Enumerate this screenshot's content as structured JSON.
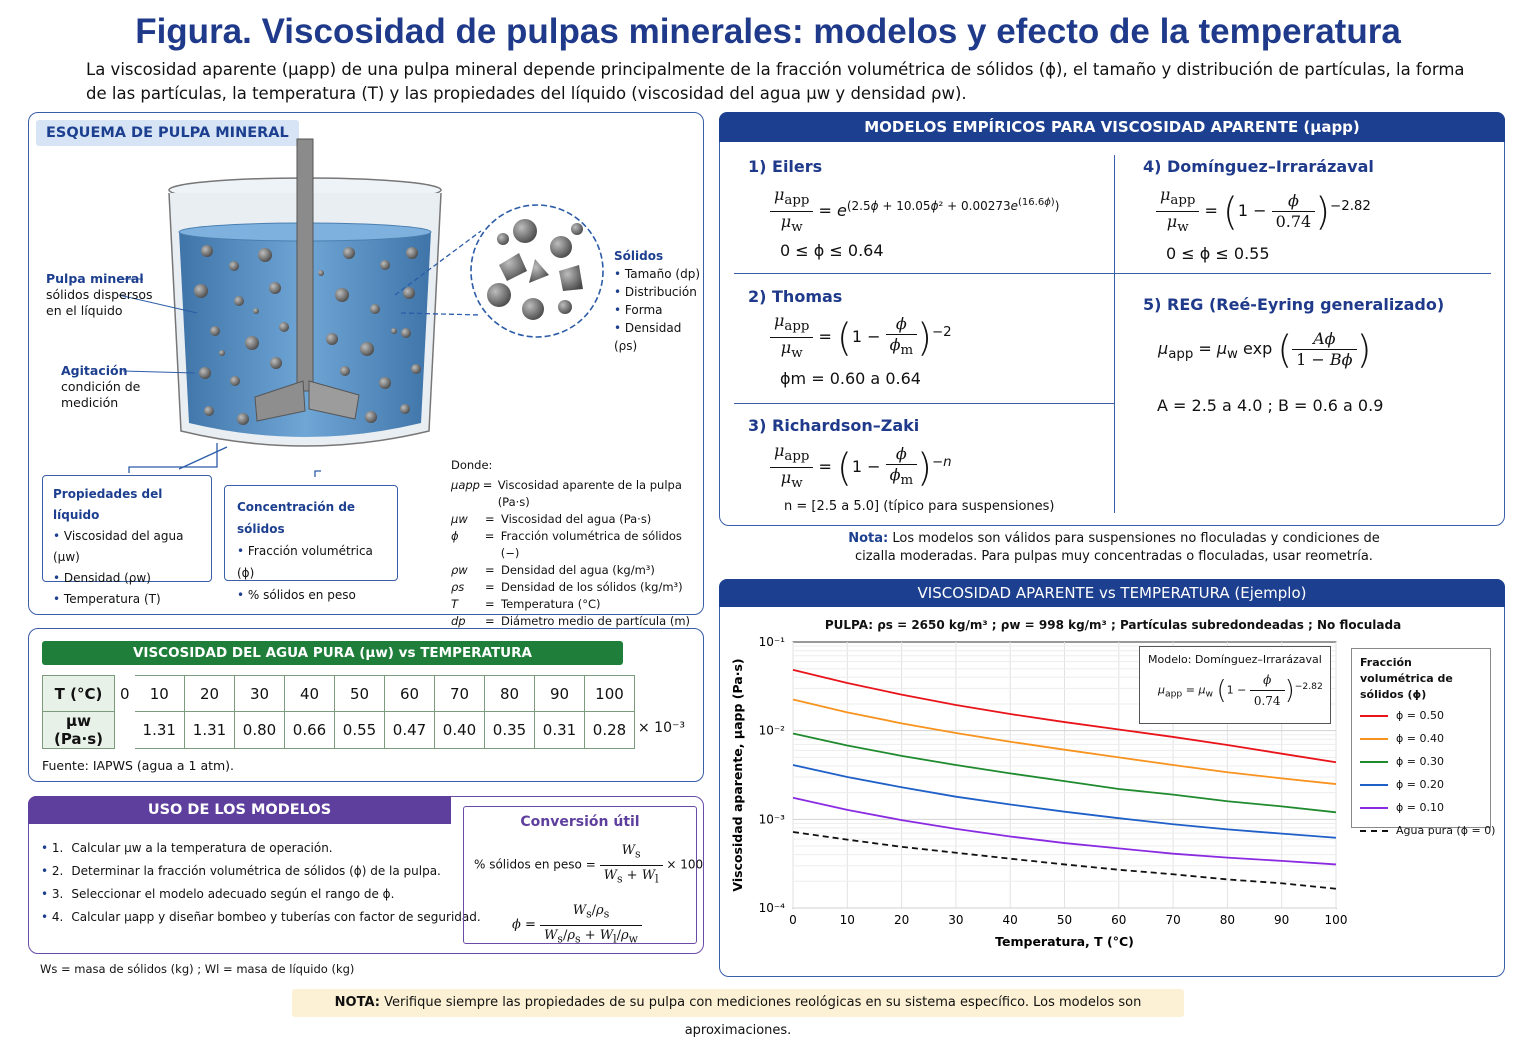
{
  "header": {
    "title": "Figura.  Viscosidad de pulpas minerales: modelos y efecto de la temperatura",
    "intro": "La viscosidad aparente (μapp) de una pulpa mineral depende principalmente de la fracción volumétrica de sólidos (ϕ), el tamaño y distribución de partículas, la forma de las partículas, la temperatura (T) y las propiedades del líquido (viscosidad del agua μw y densidad ρw)."
  },
  "schematic": {
    "title": "ESQUEMA DE PULPA MINERAL",
    "pulp_label": "Pulpa mineral",
    "pulp_desc": "sólidos dispersos en el líquido",
    "agit_label": "Agitación",
    "agit_desc": "condición de medición",
    "solids_title": "Sólidos",
    "solids_items": [
      "Tamaño (dp)",
      "Distribución",
      "Forma",
      "Densidad (ρs)"
    ],
    "liquid_title": "Propiedades del líquido",
    "liquid_items": [
      "Viscosidad del agua (μw)",
      "Densidad (ρw)",
      "Temperatura (T)"
    ],
    "conc_title": "Concentración de sólidos",
    "conc_items": [
      "Fracción volumétrica (ϕ)",
      "% sólidos en peso"
    ],
    "where_title": "Donde:",
    "where": [
      {
        "sym": "μapp",
        "desc": "Viscosidad aparente de la pulpa (Pa·s)"
      },
      {
        "sym": "μw",
        "desc": "Viscosidad del agua (Pa·s)"
      },
      {
        "sym": "ϕ",
        "desc": "Fracción volumétrica de sólidos (−)"
      },
      {
        "sym": "ρw",
        "desc": "Densidad del agua (kg/m³)"
      },
      {
        "sym": "ρs",
        "desc": "Densidad de los sólidos (kg/m³)"
      },
      {
        "sym": "T",
        "desc": "Temperatura (°C)"
      },
      {
        "sym": "dp",
        "desc": "Diámetro medio de partícula (m)"
      }
    ]
  },
  "models": {
    "title": "MODELOS EMPÍRICOS PARA VISCOSIDAD APARENTE (μapp)",
    "eilers": {
      "name": "1) Eilers",
      "range": "0 ≤ ϕ ≤ 0.64"
    },
    "thomas": {
      "name": "2) Thomas",
      "range": "ϕm = 0.60 a 0.64"
    },
    "rz": {
      "name": "3) Richardson–Zaki",
      "range": "n = [2.5 a 5.0] (típico para suspensiones)"
    },
    "dom": {
      "name": "4) Domínguez–Irrarázaval",
      "range": "0 ≤ ϕ ≤ 0.55"
    },
    "reg": {
      "name": "5) REG (Reé-Eyring generalizado)",
      "range": "A = 2.5 a 4.0 ;   B = 0.6 a 0.9"
    },
    "note_bold": "Nota:",
    "note": "Los modelos son válidos para suspensiones no floculadas y condiciones de cizalla moderadas. Para pulpas muy concentradas o floculadas, usar reometría."
  },
  "water": {
    "title": "VISCOSIDAD DEL AGUA PURA (μw) vs TEMPERATURA",
    "row1_label": "T (°C)",
    "row2_label": "μw (Pa·s)",
    "temps": [
      "0",
      "10",
      "20",
      "30",
      "40",
      "50",
      "60",
      "70",
      "80",
      "90",
      "100"
    ],
    "visc": [
      "",
      "1.31",
      "1.31",
      "0.80",
      "0.66",
      "0.55",
      "0.47",
      "0.40",
      "0.35",
      "0.31",
      "0.28"
    ],
    "multiplier": "× 10⁻³",
    "source": "Fuente: IAPWS (agua a 1 atm)."
  },
  "usage": {
    "title": "USO DE LOS MODELOS",
    "steps": [
      "Calcular μw a la temperatura de operación.",
      "Determinar la fracción volumétrica de sólidos (ϕ) de la pulpa.",
      "Seleccionar el modelo adecuado según el rango de ϕ.",
      "Calcular μapp y diseñar bombeo y tuberías con factor de seguridad."
    ],
    "footnote": "Ws = masa de sólidos (kg) ;   Wl = masa de líquido (kg)",
    "conv_title": "Conversión útil",
    "conv1_label": "% sólidos en peso =",
    "conv1_tail": "× 100"
  },
  "chart_panel": {
    "title": "VISCOSIDAD APARENTE vs TEMPERATURA (Ejemplo)",
    "subtitle": "PULPA: ρs = 2650 kg/m³ ; ρw = 998 kg/m³ ; Partículas subredondeadas ; No floculada",
    "model_box_title": "Modelo: Domínguez–Irrarázaval",
    "legend_title": "Fracción volumétrica de sólidos (ϕ)"
  },
  "chart_data": {
    "type": "line",
    "xlabel": "Temperatura, T (°C)",
    "ylabel": "Viscosidad aparente, μapp (Pa·s)",
    "xlim": [
      0,
      100
    ],
    "ylim": [
      0.0001,
      0.1
    ],
    "yscale": "log",
    "x_ticks": [
      0,
      10,
      20,
      30,
      40,
      50,
      60,
      70,
      80,
      90,
      100
    ],
    "y_tick_labels": [
      "10⁻¹",
      "10⁻²",
      "10⁻³",
      "10⁻⁴"
    ],
    "grid": true,
    "legend_placement": "right",
    "x": [
      0,
      10,
      20,
      30,
      40,
      50,
      60,
      70,
      80,
      90,
      100
    ],
    "series": [
      {
        "name": "ϕ = 0.50",
        "color": "#e8141a",
        "dash": false,
        "values": [
          0.0485,
          0.0345,
          0.0255,
          0.0195,
          0.0154,
          0.0125,
          0.0103,
          0.0085,
          0.0069,
          0.0055,
          0.0044
        ]
      },
      {
        "name": "ϕ = 0.40",
        "color": "#f7931e",
        "dash": false,
        "values": [
          0.0225,
          0.0161,
          0.0121,
          0.0094,
          0.0075,
          0.0061,
          0.005,
          0.0041,
          0.0034,
          0.0029,
          0.0025
        ]
      },
      {
        "name": "ϕ = 0.30",
        "color": "#1f8a2e",
        "dash": false,
        "values": [
          0.0093,
          0.0068,
          0.0052,
          0.0041,
          0.0033,
          0.0027,
          0.0022,
          0.0019,
          0.0016,
          0.0014,
          0.0012
        ]
      },
      {
        "name": "ϕ = 0.20",
        "color": "#1f5fc8",
        "dash": false,
        "values": [
          0.0041,
          0.003,
          0.0023,
          0.0018,
          0.00147,
          0.00122,
          0.00103,
          0.00088,
          0.00077,
          0.00069,
          0.00062
        ]
      },
      {
        "name": "ϕ = 0.10",
        "color": "#8a2be2",
        "dash": false,
        "values": [
          0.00175,
          0.00128,
          0.00098,
          0.00078,
          0.00064,
          0.00054,
          0.00047,
          0.00041,
          0.00037,
          0.00034,
          0.00031
        ]
      },
      {
        "name": "Agua pura (ϕ = 0)",
        "color": "#111111",
        "dash": true,
        "values": [
          0.00072,
          0.00059,
          0.00049,
          0.00042,
          0.00036,
          0.00031,
          0.00027,
          0.00024,
          0.00021,
          0.00019,
          0.000165
        ]
      }
    ]
  },
  "footer": {
    "bold": "NOTA:",
    "text": "Verifique siempre las propiedades de su pulpa con mediciones reológicas en su sistema específico. Los modelos son aproximaciones."
  }
}
